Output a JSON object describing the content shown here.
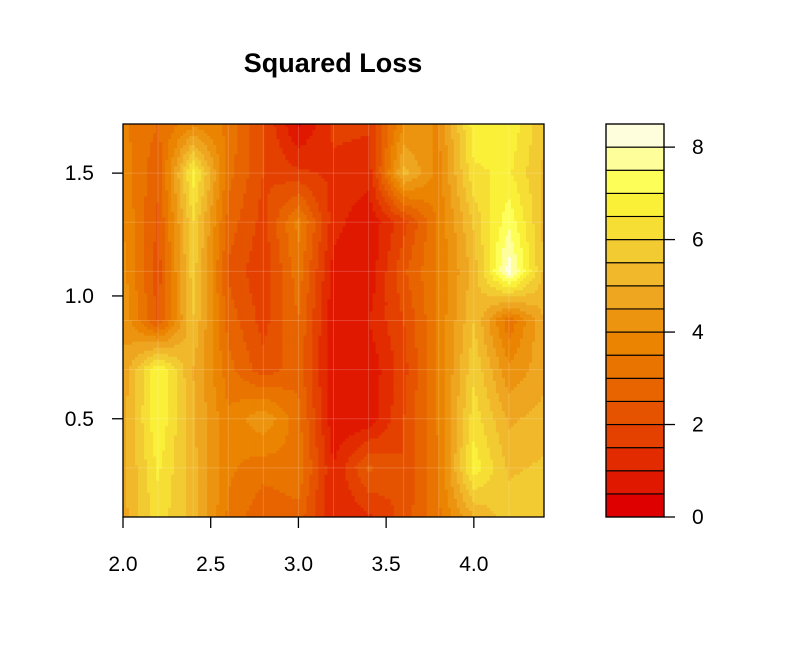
{
  "chart_data": {
    "type": "heatmap",
    "title": "Squared Loss",
    "xlabel": "",
    "ylabel": "",
    "xlim": [
      2.0,
      4.4
    ],
    "ylim": [
      0.1,
      1.7
    ],
    "x_ticks": [
      "2.0",
      "2.5",
      "3.0",
      "3.5",
      "4.0"
    ],
    "y_ticks": [
      "0.5",
      "1.0",
      "1.5"
    ],
    "colorbar_ticks": [
      "0",
      "2",
      "4",
      "6",
      "8"
    ],
    "colorbar_range": [
      0,
      8.5
    ],
    "colorbar_levels": 17,
    "colors": [
      "#DE0000",
      "#E01800",
      "#E22C00",
      "#E44000",
      "#E55300",
      "#E76400",
      "#E97400",
      "#EB8400",
      "#EC9410",
      "#EEA520",
      "#F0B82A",
      "#F2CA32",
      "#F6DE34",
      "#FAF038",
      "#FEFE58",
      "#FEFE9A",
      "#FEFEDC"
    ],
    "x": [
      2.0,
      2.2,
      2.4,
      2.6,
      2.8,
      3.0,
      3.2,
      3.4,
      3.6,
      3.8,
      4.0,
      4.2,
      4.4
    ],
    "y": [
      0.1,
      0.3,
      0.5,
      0.7,
      0.9,
      1.1,
      1.3,
      1.5,
      1.7
    ],
    "z": [
      [
        4.8,
        6.3,
        5.3,
        3.4,
        2.6,
        2.8,
        1.0,
        1.4,
        2.2,
        3.4,
        5.0,
        5.8,
        6.0
      ],
      [
        4.8,
        6.6,
        5.2,
        3.6,
        3.2,
        3.4,
        1.0,
        2.6,
        2.0,
        3.5,
        6.8,
        5.4,
        5.6
      ],
      [
        4.8,
        7.0,
        5.1,
        3.6,
        4.4,
        3.2,
        0.6,
        0.6,
        2.0,
        3.6,
        6.3,
        4.9,
        5.2
      ],
      [
        4.6,
        7.0,
        5.0,
        3.2,
        2.2,
        2.8,
        0.6,
        0.6,
        1.8,
        3.6,
        5.9,
        4.1,
        4.8
      ],
      [
        4.4,
        2.4,
        5.5,
        2.8,
        1.8,
        3.0,
        0.6,
        1.0,
        2.0,
        3.6,
        5.5,
        3.1,
        5.0
      ],
      [
        4.2,
        2.2,
        5.8,
        2.4,
        1.6,
        3.3,
        0.8,
        0.6,
        2.4,
        3.6,
        5.2,
        8.3,
        5.4
      ],
      [
        4.0,
        2.4,
        6.0,
        2.8,
        1.8,
        3.7,
        1.2,
        0.6,
        1.8,
        3.6,
        5.6,
        7.4,
        5.4
      ],
      [
        3.8,
        2.6,
        6.8,
        3.2,
        2.0,
        1.6,
        1.4,
        1.2,
        5.2,
        3.8,
        6.4,
        6.6,
        5.4
      ],
      [
        3.6,
        3.0,
        3.8,
        3.4,
        2.0,
        0.4,
        1.6,
        1.6,
        4.0,
        4.0,
        6.8,
        6.9,
        5.6
      ]
    ]
  }
}
